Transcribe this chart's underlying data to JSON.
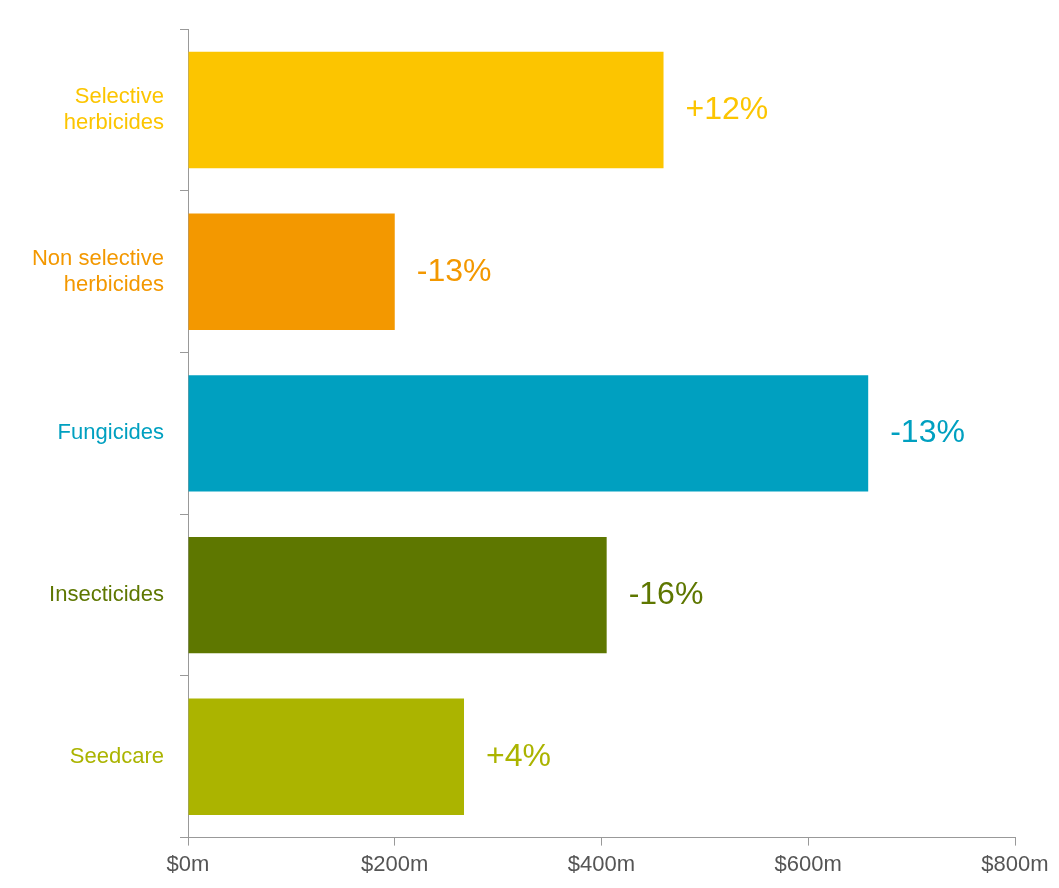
{
  "chart_data": {
    "type": "bar",
    "orientation": "horizontal",
    "categories": [
      "Selective herbicides",
      "Non selective herbicides",
      "Fungicides",
      "Insecticides",
      "Seedcare"
    ],
    "values": [
      460,
      200,
      658,
      405,
      267
    ],
    "colors": [
      "#fcc500",
      "#f39800",
      "#00a0c0",
      "#5e7700",
      "#abb400"
    ],
    "xlim": [
      0,
      800
    ],
    "xticks": [
      {
        "value": 0,
        "label": "$0m"
      },
      {
        "value": 200,
        "label": "$200m"
      },
      {
        "value": 400,
        "label": "$400m"
      },
      {
        "value": 600,
        "label": "$600m"
      },
      {
        "value": 800,
        "label": "$800m"
      }
    ],
    "grid": false,
    "legend": false,
    "annotations": [
      {
        "text": "+12%",
        "x": 460,
        "y": "Selective herbicides"
      },
      {
        "text": "-13%",
        "x": 200,
        "y": "Non selective herbicides"
      },
      {
        "text": "-13%",
        "x": 658,
        "y": "Fungicides"
      },
      {
        "text": "-16%",
        "x": 405,
        "y": "Insecticides"
      },
      {
        "text": "+4%",
        "x": 267,
        "y": "Seedcare"
      }
    ]
  }
}
